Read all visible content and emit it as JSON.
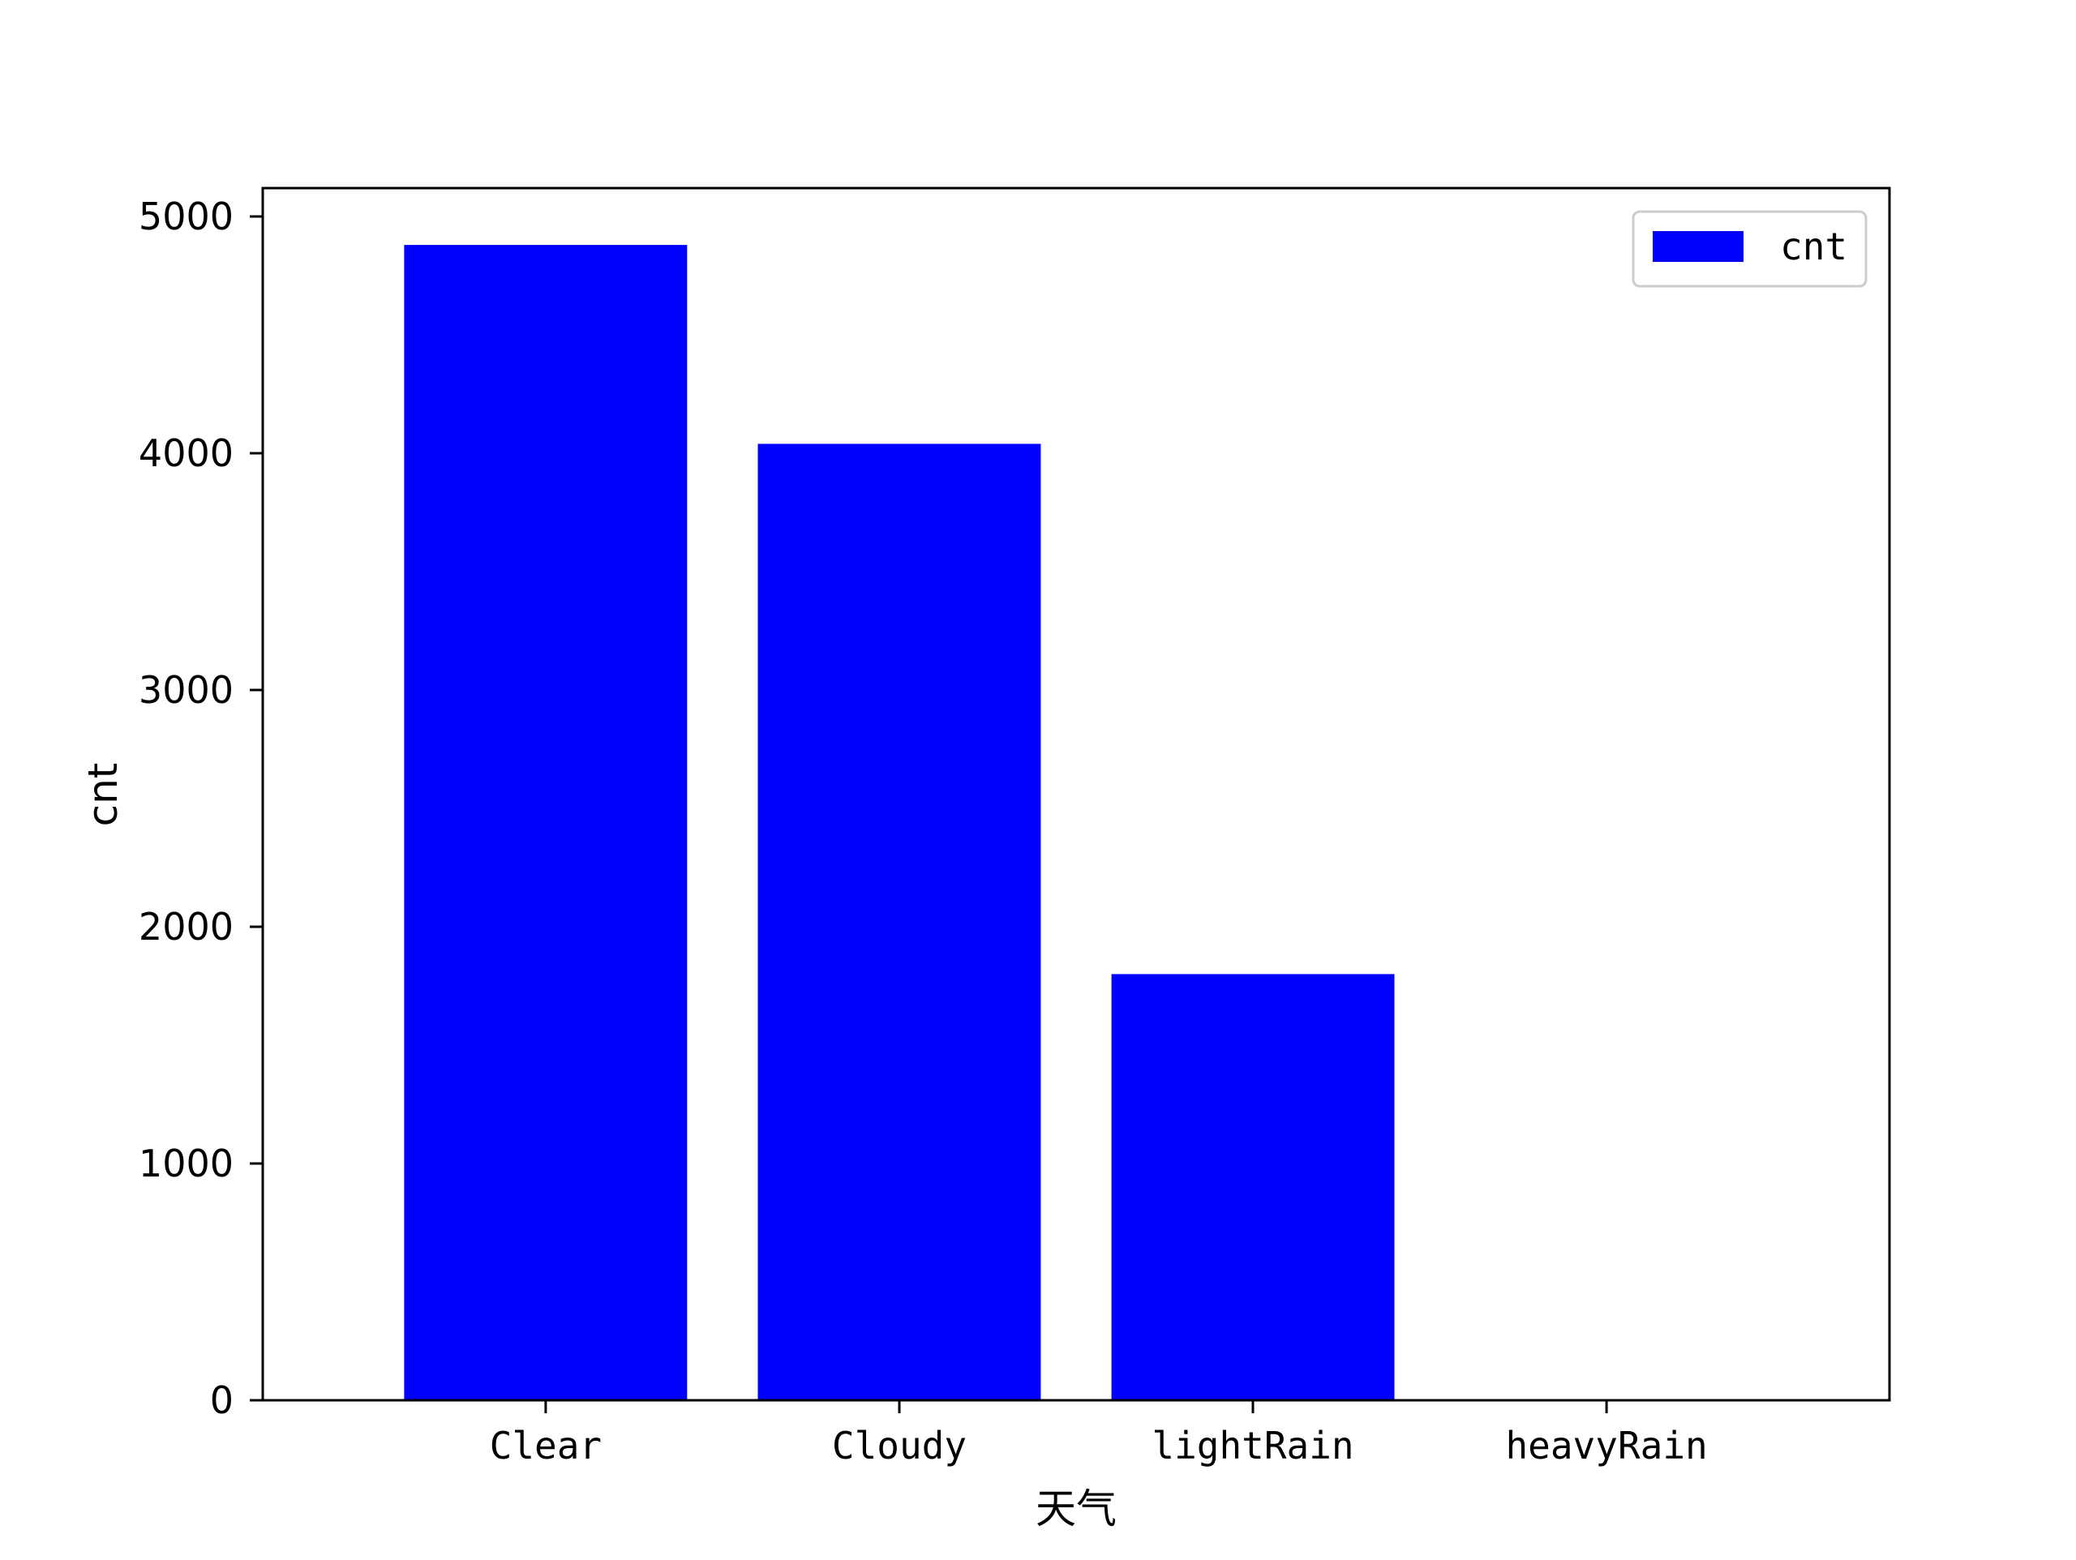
{
  "chart_data": {
    "type": "bar",
    "categories": [
      "Clear",
      "Cloudy",
      "lightRain",
      "heavyRain"
    ],
    "series": [
      {
        "name": "cnt",
        "values": [
          4880,
          4040,
          1800,
          0
        ],
        "color": "#0000ff"
      }
    ],
    "xlabel": "天气",
    "ylabel": "cnt",
    "ylim": [
      0,
      5120
    ],
    "yticks": [
      0,
      1000,
      2000,
      3000,
      4000,
      5000
    ],
    "grid": false,
    "legend": {
      "position": "top-right",
      "entries": [
        "cnt"
      ]
    }
  }
}
